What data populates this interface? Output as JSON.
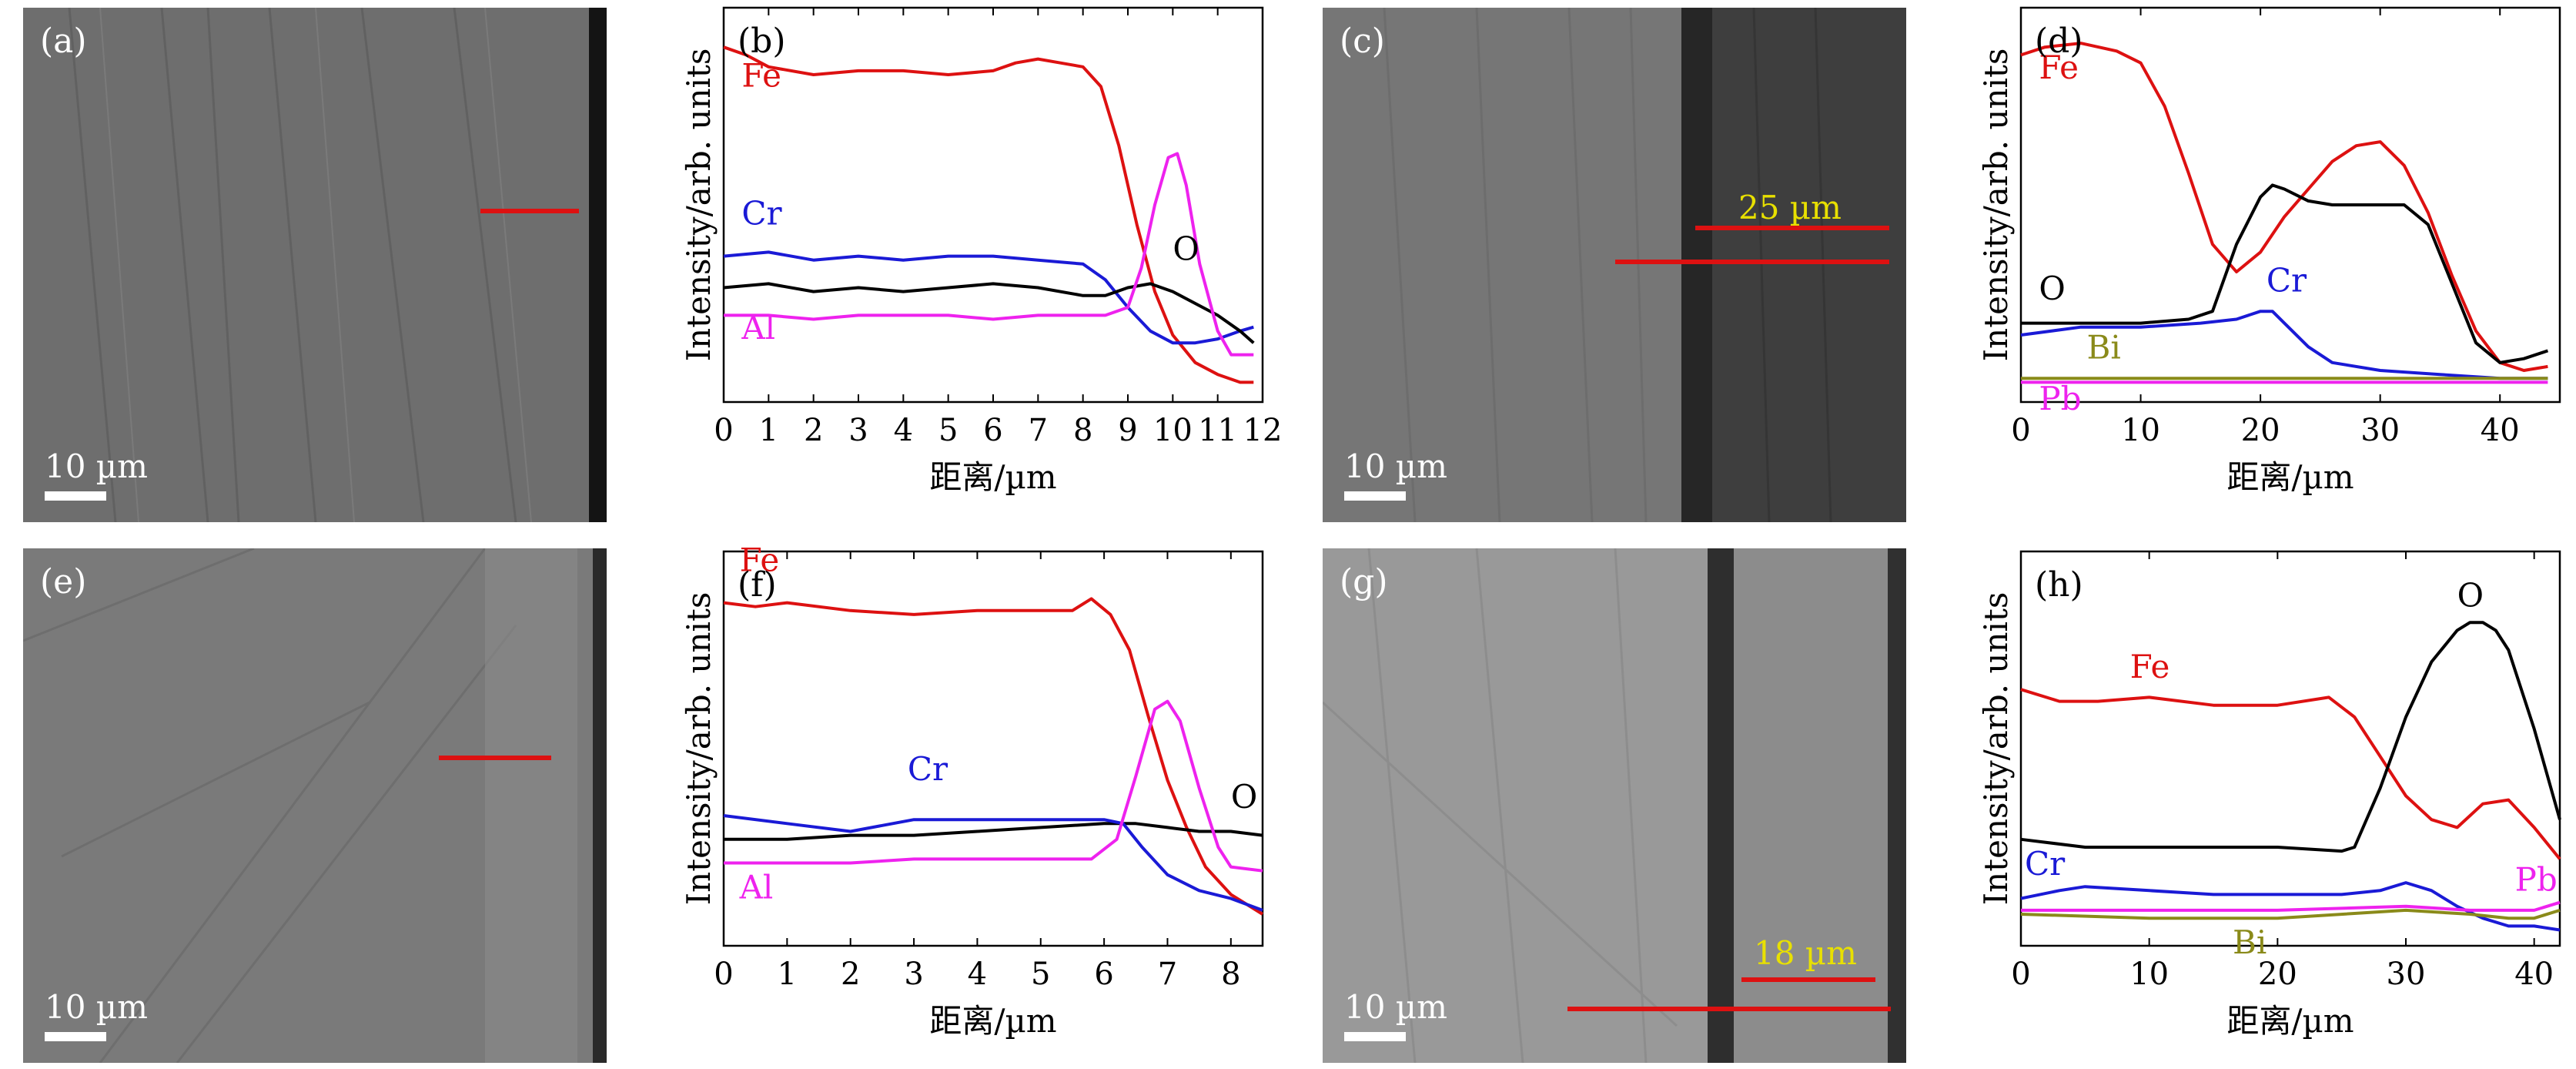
{
  "images": [
    {
      "id": "a",
      "label": "(a)",
      "scale_text": "10 µm",
      "line_label": ""
    },
    {
      "id": "c",
      "label": "(c)",
      "scale_text": "10 µm",
      "line_label": "25 µm"
    },
    {
      "id": "e",
      "label": "(e)",
      "scale_text": "10 µm",
      "line_label": ""
    },
    {
      "id": "g",
      "label": "(g)",
      "scale_text": "10 µm",
      "line_label": "18 µm"
    }
  ],
  "colors": {
    "Fe": "#dd1111",
    "Cr": "#1a1ad6",
    "O": "#000000",
    "Al": "#ee22ee",
    "Bi": "#8a8a1a",
    "Pb": "#ee22ee",
    "scan_line": "#dd1111",
    "label_yellow": "#e8e000"
  },
  "chart_data": [
    {
      "id": "b",
      "panel_label": "(b)",
      "type": "line",
      "xlabel": "距离/µm",
      "ylabel": "Intensity/arb. units",
      "xlim": [
        0,
        12
      ],
      "ylim": [
        0,
        100
      ],
      "xticks": [
        0,
        1,
        2,
        3,
        4,
        5,
        6,
        7,
        8,
        9,
        10,
        11,
        12
      ],
      "xtick_labels": [
        "0",
        "1",
        "2",
        "3",
        "4",
        "5",
        "6",
        "7",
        "8",
        "9",
        "10",
        "11",
        "12"
      ],
      "series": [
        {
          "name": "Fe",
          "color": "#dd1111",
          "x": [
            0,
            0.5,
            1,
            2,
            3,
            4,
            5,
            6,
            6.5,
            7,
            7.5,
            8,
            8.4,
            8.8,
            9.2,
            9.6,
            10,
            10.5,
            11,
            11.5,
            11.8
          ],
          "y": [
            90,
            88,
            85,
            83,
            84,
            84,
            83,
            84,
            86,
            87,
            86,
            85,
            80,
            65,
            45,
            28,
            17,
            10,
            7,
            5,
            5
          ]
        },
        {
          "name": "Cr",
          "color": "#1a1ad6",
          "x": [
            0,
            1,
            2,
            3,
            4,
            5,
            6,
            7,
            8,
            8.5,
            9,
            9.5,
            10,
            10.5,
            11,
            11.5,
            11.8
          ],
          "y": [
            37,
            38,
            36,
            37,
            36,
            37,
            37,
            36,
            35,
            31,
            24,
            18,
            15,
            15,
            16,
            18,
            19
          ]
        },
        {
          "name": "O",
          "color": "#000000",
          "x": [
            0,
            1,
            2,
            3,
            4,
            5,
            6,
            7,
            8,
            8.5,
            9,
            9.5,
            10,
            10.5,
            11,
            11.5,
            11.8
          ],
          "y": [
            29,
            30,
            28,
            29,
            28,
            29,
            30,
            29,
            27,
            27,
            29,
            30,
            28,
            25,
            22,
            18,
            15
          ]
        },
        {
          "name": "Al",
          "color": "#ee22ee",
          "x": [
            0,
            1,
            2,
            3,
            4,
            5,
            6,
            7,
            8,
            8.5,
            9,
            9.3,
            9.6,
            9.9,
            10.1,
            10.3,
            10.6,
            11,
            11.3,
            11.8
          ],
          "y": [
            22,
            22,
            21,
            22,
            22,
            22,
            21,
            22,
            22,
            22,
            24,
            34,
            50,
            62,
            63,
            55,
            35,
            18,
            12,
            12
          ]
        }
      ],
      "labels": [
        {
          "text": "Fe",
          "x": 0.4,
          "y": 80,
          "color": "#dd1111"
        },
        {
          "text": "Cr",
          "x": 0.4,
          "y": 45,
          "color": "#1a1ad6"
        },
        {
          "text": "O",
          "x": 10.0,
          "y": 36,
          "color": "#000000"
        },
        {
          "text": "Al",
          "x": 0.4,
          "y": 16,
          "color": "#ee22ee"
        }
      ]
    },
    {
      "id": "d",
      "panel_label": "(d)",
      "type": "line",
      "xlabel": "距离/µm",
      "ylabel": "Intensity/arb. units",
      "xlim": [
        0,
        45
      ],
      "ylim": [
        0,
        100
      ],
      "xticks": [
        0,
        10,
        20,
        30,
        40
      ],
      "xtick_labels": [
        "0",
        "10",
        "20",
        "30",
        "40"
      ],
      "series": [
        {
          "name": "Fe",
          "color": "#dd1111",
          "x": [
            0,
            2,
            5,
            8,
            10,
            12,
            14,
            16,
            18,
            20,
            22,
            24,
            26,
            28,
            30,
            32,
            34,
            36,
            38,
            40,
            42,
            44
          ],
          "y": [
            88,
            90,
            91,
            89,
            86,
            75,
            58,
            40,
            33,
            38,
            47,
            54,
            61,
            65,
            66,
            60,
            48,
            32,
            18,
            10,
            8,
            9
          ]
        },
        {
          "name": "O",
          "color": "#000000",
          "x": [
            0,
            5,
            10,
            14,
            16,
            18,
            20,
            21,
            22,
            24,
            26,
            28,
            30,
            32,
            34,
            36,
            38,
            40,
            42,
            44
          ],
          "y": [
            20,
            20,
            20,
            21,
            23,
            40,
            52,
            55,
            54,
            51,
            50,
            50,
            50,
            50,
            45,
            30,
            15,
            10,
            11,
            13
          ]
        },
        {
          "name": "Cr",
          "color": "#1a1ad6",
          "x": [
            0,
            5,
            10,
            15,
            18,
            20,
            21,
            22,
            24,
            26,
            30,
            35,
            40,
            44
          ],
          "y": [
            17,
            19,
            19,
            20,
            21,
            23,
            23,
            20,
            14,
            10,
            8,
            7,
            6,
            6
          ]
        },
        {
          "name": "Bi",
          "color": "#8a8a1a",
          "x": [
            0,
            10,
            20,
            30,
            40,
            44
          ],
          "y": [
            6,
            6,
            6,
            6,
            6,
            6
          ]
        },
        {
          "name": "Pb",
          "color": "#ee22ee",
          "x": [
            0,
            10,
            20,
            30,
            40,
            44
          ],
          "y": [
            5,
            5,
            5,
            5,
            5,
            5
          ]
        }
      ],
      "labels": [
        {
          "text": "Fe",
          "x": 1.5,
          "y": 82,
          "color": "#dd1111"
        },
        {
          "text": "O",
          "x": 1.5,
          "y": 26,
          "color": "#000000"
        },
        {
          "text": "Cr",
          "x": 20.5,
          "y": 28,
          "color": "#1a1ad6"
        },
        {
          "text": "Bi",
          "x": 5.5,
          "y": 11,
          "color": "#8a8a1a"
        },
        {
          "text": "Pb",
          "x": 1.5,
          "y": -2,
          "color": "#ee22ee"
        }
      ]
    },
    {
      "id": "f",
      "panel_label": "(f)",
      "type": "line",
      "xlabel": "距离/µm",
      "ylabel": "Intensity/arb. units",
      "xlim": [
        0,
        8.5
      ],
      "ylim": [
        0,
        100
      ],
      "xticks": [
        0,
        1,
        2,
        3,
        4,
        5,
        6,
        7,
        8
      ],
      "xtick_labels": [
        "0",
        "1",
        "2",
        "3",
        "4",
        "5",
        "6",
        "7",
        "8"
      ],
      "series": [
        {
          "name": "Fe",
          "color": "#dd1111",
          "x": [
            0,
            0.5,
            1,
            2,
            3,
            4,
            5,
            5.5,
            5.8,
            6.1,
            6.4,
            6.7,
            7,
            7.3,
            7.6,
            8,
            8.5
          ],
          "y": [
            87,
            86,
            87,
            85,
            84,
            85,
            85,
            85,
            88,
            84,
            75,
            58,
            42,
            30,
            20,
            13,
            8
          ]
        },
        {
          "name": "O",
          "color": "#000000",
          "x": [
            0,
            1,
            2,
            3,
            4,
            5,
            6,
            6.5,
            7,
            7.5,
            8,
            8.5
          ],
          "y": [
            27,
            27,
            28,
            28,
            29,
            30,
            31,
            31,
            30,
            29,
            29,
            28
          ]
        },
        {
          "name": "Cr",
          "color": "#1a1ad6",
          "x": [
            0,
            1,
            2,
            3,
            4,
            5,
            6,
            6.3,
            6.6,
            7,
            7.5,
            8,
            8.5
          ],
          "y": [
            33,
            31,
            29,
            32,
            32,
            32,
            32,
            31,
            25,
            18,
            14,
            12,
            9
          ]
        },
        {
          "name": "Al",
          "color": "#ee22ee",
          "x": [
            0,
            1,
            2,
            3,
            4,
            5,
            5.8,
            6.2,
            6.5,
            6.8,
            7,
            7.2,
            7.5,
            7.8,
            8,
            8.5
          ],
          "y": [
            21,
            21,
            21,
            22,
            22,
            22,
            22,
            27,
            43,
            60,
            62,
            57,
            40,
            25,
            20,
            19
          ]
        }
      ],
      "labels": [
        {
          "text": "Fe",
          "x": 0.25,
          "y": 95,
          "color": "#dd1111"
        },
        {
          "text": "Cr",
          "x": 2.9,
          "y": 42,
          "color": "#1a1ad6"
        },
        {
          "text": "O",
          "x": 8.0,
          "y": 35,
          "color": "#000000"
        },
        {
          "text": "Al",
          "x": 0.25,
          "y": 12,
          "color": "#ee22ee"
        }
      ]
    },
    {
      "id": "h",
      "panel_label": "(h)",
      "type": "line",
      "xlabel": "距离/µm",
      "ylabel": "Intensity/arb. units",
      "xlim": [
        0,
        42
      ],
      "ylim": [
        0,
        100
      ],
      "xticks": [
        0,
        10,
        20,
        30,
        40
      ],
      "xtick_labels": [
        "0",
        "10",
        "20",
        "30",
        "40"
      ],
      "series": [
        {
          "name": "Fe",
          "color": "#dd1111",
          "x": [
            0,
            3,
            6,
            10,
            15,
            20,
            24,
            26,
            28,
            30,
            32,
            34,
            36,
            38,
            40,
            42
          ],
          "y": [
            65,
            62,
            62,
            63,
            61,
            61,
            63,
            58,
            48,
            38,
            32,
            30,
            36,
            37,
            30,
            22
          ]
        },
        {
          "name": "O",
          "color": "#000000",
          "x": [
            0,
            5,
            10,
            15,
            20,
            25,
            26,
            28,
            30,
            32,
            34,
            35,
            36,
            37,
            38,
            40,
            42
          ],
          "y": [
            27,
            25,
            25,
            25,
            25,
            24,
            25,
            40,
            58,
            72,
            80,
            82,
            82,
            80,
            75,
            55,
            32
          ]
        },
        {
          "name": "Cr",
          "color": "#1a1ad6",
          "x": [
            0,
            3,
            5,
            10,
            15,
            20,
            25,
            28,
            30,
            32,
            34,
            36,
            38,
            40,
            42
          ],
          "y": [
            12,
            14,
            15,
            14,
            13,
            13,
            13,
            14,
            16,
            14,
            10,
            7,
            5,
            5,
            4
          ]
        },
        {
          "name": "Pb",
          "color": "#ee22ee",
          "x": [
            0,
            10,
            20,
            30,
            35,
            38,
            40,
            42
          ],
          "y": [
            9,
            9,
            9,
            10,
            9,
            9,
            9,
            11
          ]
        },
        {
          "name": "Bi",
          "color": "#8a8a1a",
          "x": [
            0,
            10,
            20,
            30,
            35,
            38,
            40,
            42
          ],
          "y": [
            8,
            7,
            7,
            9,
            8,
            7,
            7,
            9
          ]
        }
      ],
      "labels": [
        {
          "text": "O",
          "x": 34.0,
          "y": 86,
          "color": "#000000"
        },
        {
          "text": "Fe",
          "x": 8.5,
          "y": 68,
          "color": "#dd1111"
        },
        {
          "text": "Cr",
          "x": 0.3,
          "y": 18,
          "color": "#1a1ad6"
        },
        {
          "text": "Pb",
          "x": 38.5,
          "y": 14,
          "color": "#ee22ee"
        },
        {
          "text": "Bi",
          "x": 16.5,
          "y": -2,
          "color": "#8a8a1a"
        }
      ]
    }
  ]
}
